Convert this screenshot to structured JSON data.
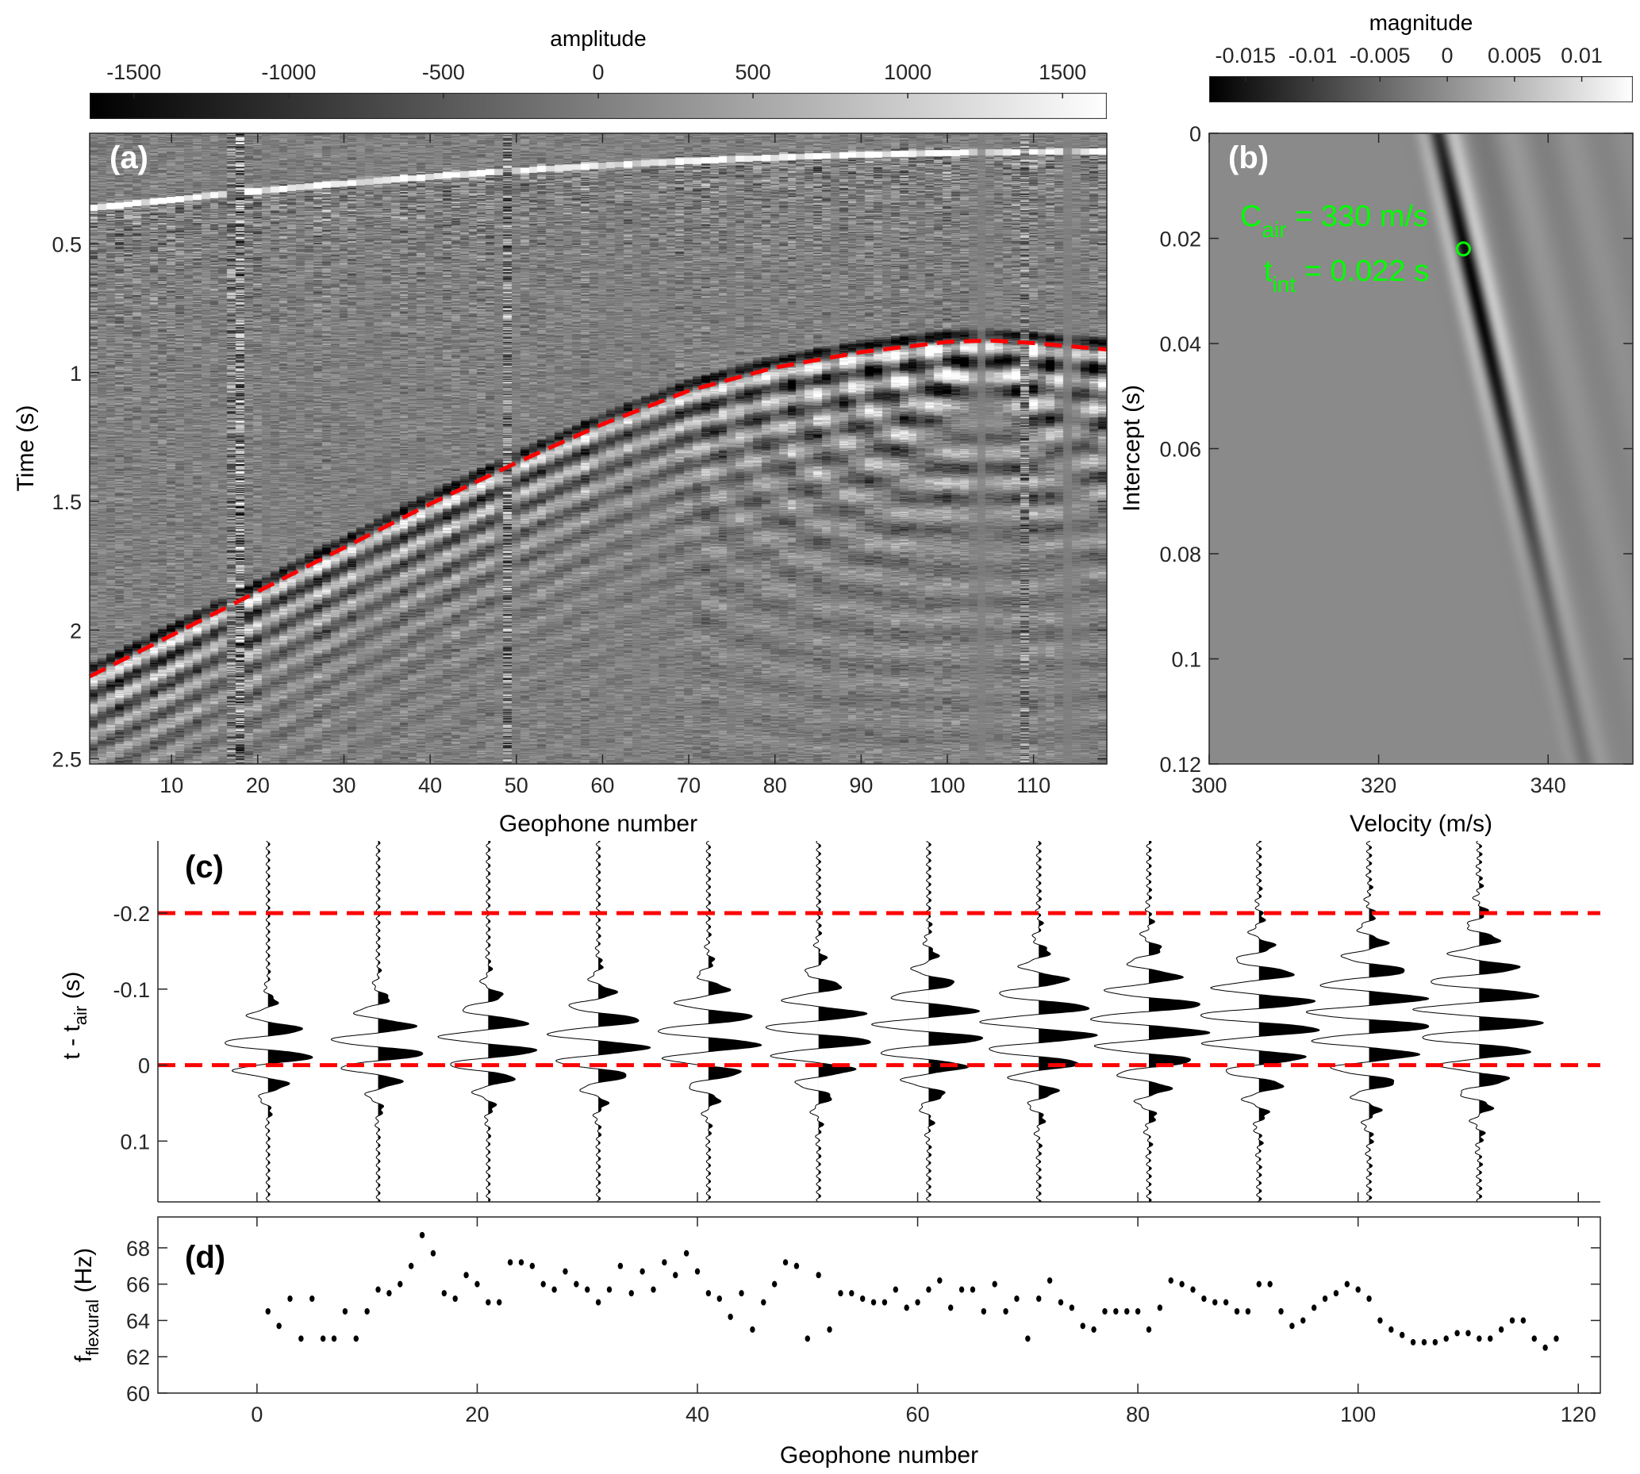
{
  "chart_data": [
    {
      "id": "a",
      "type": "heatmap",
      "panel_label": "(a)",
      "xlabel": "Geophone number",
      "ylabel": "Time (s)",
      "xlim": [
        0.5,
        118.5
      ],
      "ylim": [
        0.07,
        2.52
      ],
      "y_reversed": true,
      "xticks": [
        10,
        20,
        30,
        40,
        50,
        60,
        70,
        80,
        90,
        100,
        110
      ],
      "yticks": [
        0.5,
        1,
        1.5,
        2,
        2.5
      ],
      "colormap": "gray",
      "colorbar": {
        "label": "amplitude",
        "range": [
          -1643,
          1643
        ],
        "ticks": [
          -1500,
          -1000,
          -500,
          0,
          500,
          1000,
          1500
        ]
      },
      "overlay_line": {
        "style": "dashed",
        "color": "#ff0000",
        "points": [
          [
            0.5,
            2.18
          ],
          [
            10,
            2.02
          ],
          [
            20,
            1.85
          ],
          [
            30,
            1.68
          ],
          [
            40,
            1.51
          ],
          [
            50,
            1.35
          ],
          [
            60,
            1.2
          ],
          [
            70,
            1.07
          ],
          [
            80,
            0.98
          ],
          [
            90,
            0.92
          ],
          [
            100,
            0.88
          ],
          [
            105,
            0.875
          ],
          [
            110,
            0.885
          ],
          [
            118.5,
            0.91
          ]
        ]
      }
    },
    {
      "id": "b",
      "type": "heatmap",
      "panel_label": "(b)",
      "xlabel": "Velocity (m/s)",
      "ylabel": "Intercept (s)",
      "xlim": [
        300,
        350
      ],
      "ylim": [
        0,
        0.12
      ],
      "y_reversed": true,
      "xticks": [
        300,
        320,
        340
      ],
      "yticks": [
        0,
        0.02,
        0.04,
        0.06,
        0.08,
        0.1,
        0.12
      ],
      "ytick_labels": [
        "0",
        "0.02",
        "0.04",
        "0.06",
        "0.08",
        "0.1",
        "0.12"
      ],
      "colormap": "gray",
      "colorbar": {
        "label": "magnitude",
        "range": [
          -0.0177,
          0.0138
        ],
        "ticks": [
          -0.015,
          -0.01,
          -0.005,
          0,
          0.005,
          0.01
        ],
        "tick_labels": [
          "-0.015",
          "-0.01",
          "-0.005",
          "0",
          "0.005",
          "0.01"
        ]
      },
      "marker": {
        "velocity": 330,
        "intercept": 0.022,
        "color": "#00ff00"
      },
      "annotations": {
        "c_air_main": "C",
        "c_air_sub": "air",
        "c_air_rest": " = 330 m/s",
        "t_int_main": "t",
        "t_int_sub": "int",
        "t_int_rest": " = 0.022 s"
      }
    },
    {
      "id": "c",
      "type": "line",
      "panel_label": "(c)",
      "ylabel_main": "t - t",
      "ylabel_sub": "air",
      "ylabel_unit": " (s)",
      "xlim": [
        -9,
        122
      ],
      "ylim": [
        -0.295,
        0.18
      ],
      "y_reversed": true,
      "xticks": [
        0,
        20,
        40,
        60,
        80,
        100,
        120
      ],
      "yticks": [
        -0.2,
        -0.1,
        0,
        0.1
      ],
      "ytick_labels": [
        "-0.2",
        "-0.1",
        "0",
        "0.1"
      ],
      "trace_geophones": [
        1,
        11,
        21,
        31,
        41,
        51,
        61,
        71,
        81,
        91,
        101,
        111
      ],
      "hlines": [
        {
          "y": -0.2,
          "color": "#ff0000",
          "style": "dashed"
        },
        {
          "y": 0,
          "color": "#ff0000",
          "style": "dashed"
        }
      ]
    },
    {
      "id": "d",
      "type": "scatter",
      "panel_label": "(d)",
      "xlabel": "Geophone number",
      "ylabel_main": "f",
      "ylabel_sub": "flexural",
      "ylabel_unit": " (Hz)",
      "xlim": [
        -9,
        122
      ],
      "ylim": [
        60,
        69.7
      ],
      "xticks": [
        0,
        20,
        40,
        60,
        80,
        100,
        120
      ],
      "yticks": [
        60,
        62,
        64,
        66,
        68
      ],
      "x": [
        1,
        2,
        3,
        4,
        5,
        6,
        7,
        8,
        9,
        10,
        11,
        12,
        13,
        14,
        15,
        16,
        17,
        18,
        19,
        20,
        21,
        22,
        23,
        24,
        25,
        26,
        27,
        28,
        29,
        30,
        31,
        32,
        33,
        34,
        35,
        36,
        37,
        38,
        39,
        40,
        41,
        42,
        43,
        44,
        45,
        46,
        47,
        48,
        49,
        50,
        51,
        52,
        53,
        54,
        55,
        56,
        57,
        58,
        59,
        60,
        61,
        62,
        63,
        64,
        65,
        66,
        67,
        68,
        69,
        70,
        71,
        72,
        73,
        74,
        75,
        76,
        77,
        78,
        79,
        80,
        81,
        82,
        83,
        84,
        85,
        86,
        87,
        88,
        89,
        90,
        91,
        92,
        93,
        94,
        95,
        96,
        97,
        98,
        99,
        100,
        101,
        102,
        103,
        104,
        105,
        106,
        107,
        108,
        109,
        110,
        111,
        112,
        113,
        114,
        115,
        116,
        117,
        118
      ],
      "y": [
        64.5,
        63.7,
        65.2,
        63.0,
        65.2,
        63.0,
        63.0,
        64.5,
        63.0,
        64.5,
        65.7,
        65.5,
        66.0,
        67.0,
        68.7,
        67.7,
        65.5,
        65.2,
        66.5,
        66.0,
        65.0,
        65.0,
        67.2,
        67.2,
        67.0,
        66.0,
        65.7,
        66.7,
        66.0,
        65.7,
        65.0,
        65.7,
        67.0,
        65.5,
        66.7,
        65.7,
        67.2,
        66.5,
        67.7,
        66.7,
        65.5,
        65.2,
        64.2,
        65.5,
        63.5,
        65.0,
        66.0,
        67.2,
        67.0,
        63.0,
        66.5,
        63.5,
        65.5,
        65.5,
        65.2,
        65.0,
        65.0,
        65.7,
        64.7,
        65.0,
        65.7,
        66.2,
        64.7,
        65.7,
        65.7,
        64.5,
        66.0,
        64.5,
        65.2,
        63.0,
        65.2,
        66.2,
        65.0,
        64.7,
        63.7,
        63.5,
        64.5,
        64.5,
        64.5,
        64.5,
        63.5,
        64.7,
        66.2,
        66.0,
        65.7,
        65.2,
        65.0,
        65.0,
        64.5,
        64.5,
        66.0,
        66.0,
        64.5,
        63.7,
        64.0,
        64.7,
        65.2,
        65.5,
        66.0,
        65.7,
        65.2,
        64.0,
        63.5,
        63.2,
        62.8,
        62.8,
        62.8,
        63.0,
        63.3,
        63.3,
        63.0,
        63.0,
        63.5,
        64.0,
        64.0,
        63.0,
        62.5,
        63.0
      ]
    }
  ]
}
